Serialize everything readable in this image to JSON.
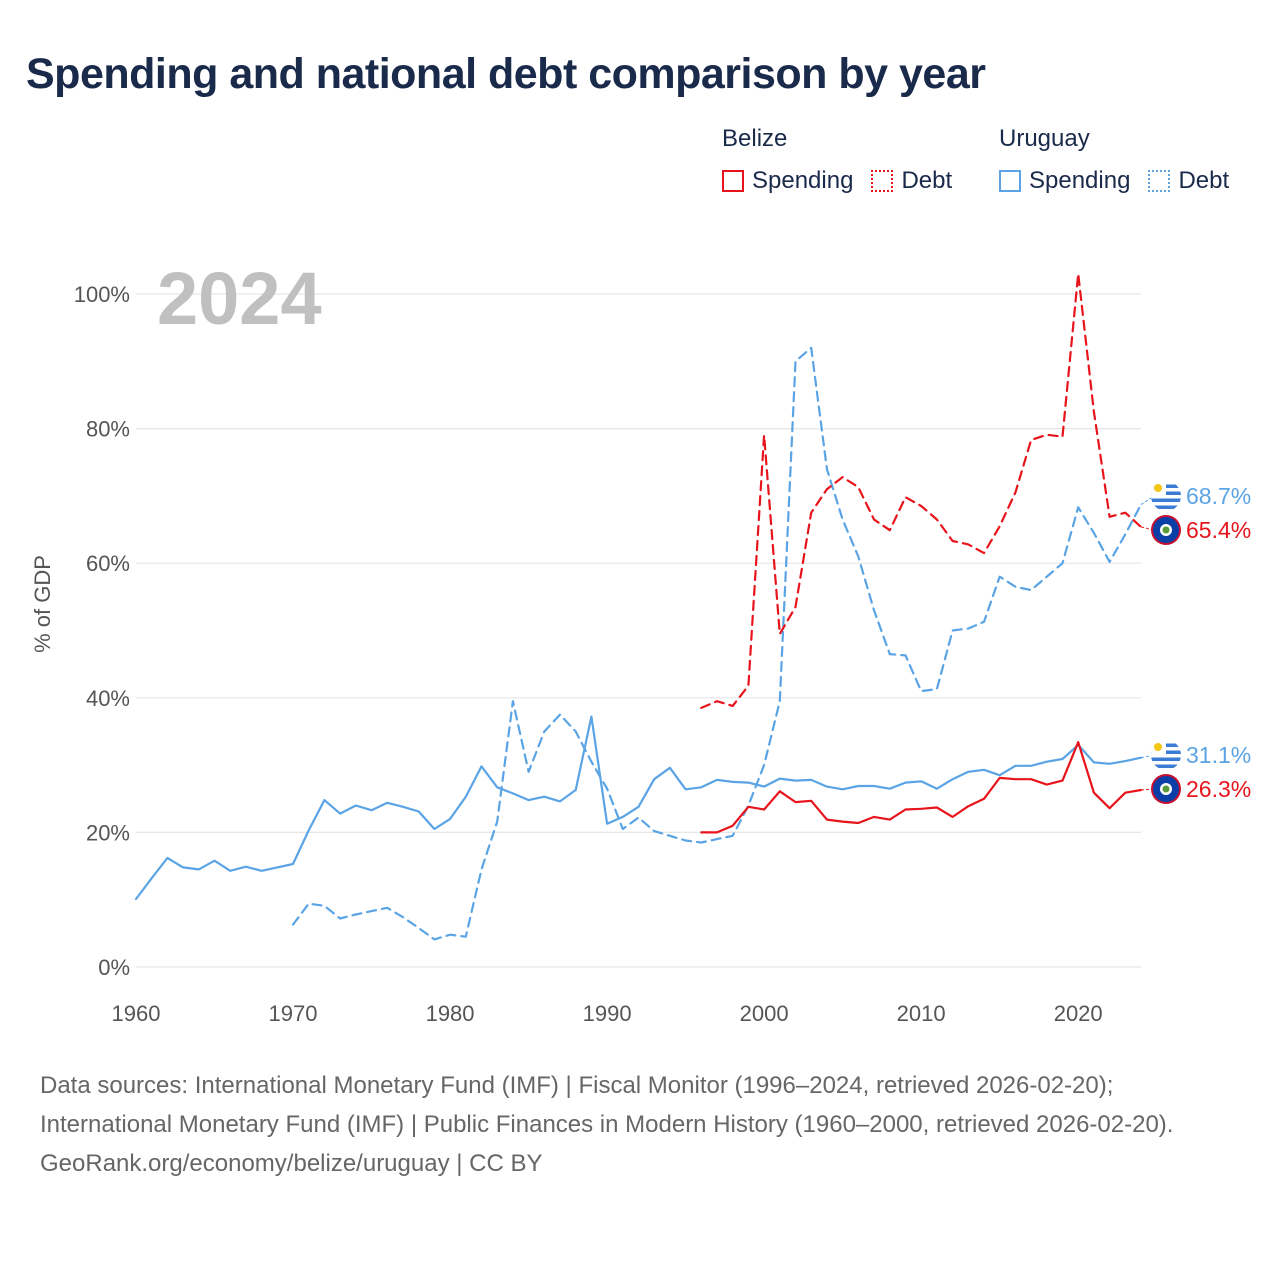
{
  "title": "Spending and national debt comparison by year",
  "legend": {
    "groups": [
      {
        "name": "Belize",
        "color": "#e8141c",
        "items": [
          {
            "label": "Spending",
            "style": "solid"
          },
          {
            "label": "Debt",
            "style": "dotted"
          }
        ]
      },
      {
        "name": "Uruguay",
        "color": "#5aa4e6",
        "items": [
          {
            "label": "Spending",
            "style": "solid"
          },
          {
            "label": "Debt",
            "style": "dotted"
          }
        ]
      }
    ]
  },
  "chart_data": {
    "type": "line",
    "year_label": "2024",
    "ylabel": "% of GDP",
    "xlabel": "",
    "xlim": [
      1960,
      2024
    ],
    "ylim": [
      0,
      100
    ],
    "x_ticks": [
      1960,
      1970,
      1980,
      1990,
      2000,
      2010,
      2020
    ],
    "y_ticks": [
      0,
      20,
      40,
      60,
      80,
      100
    ],
    "y_tick_labels": [
      "0%",
      "20%",
      "40%",
      "60%",
      "80%",
      "100%"
    ],
    "gridlines": true,
    "series": [
      {
        "name": "Uruguay Debt",
        "country": "Uruguay",
        "measure": "Debt",
        "color": "#5aa4e6",
        "dash": true,
        "x": [
          1970,
          1971,
          1972,
          1973,
          1974,
          1975,
          1976,
          1977,
          1978,
          1979,
          1980,
          1981,
          1982,
          1983,
          1984,
          1985,
          1986,
          1987,
          1988,
          1989,
          1990,
          1991,
          1992,
          1993,
          1994,
          1995,
          1996,
          1997,
          1998,
          1999,
          2000,
          2001,
          2002,
          2003,
          2004,
          2005,
          2006,
          2007,
          2008,
          2009,
          2010,
          2011,
          2012,
          2013,
          2014,
          2015,
          2016,
          2017,
          2018,
          2019,
          2020,
          2021,
          2022,
          2023,
          2024
        ],
        "y": [
          6.3,
          9.4,
          9.1,
          7.2,
          7.8,
          8.3,
          8.8,
          7.4,
          5.8,
          4.1,
          4.8,
          4.5,
          14.5,
          21.6,
          39.5,
          29.0,
          35.0,
          37.5,
          35.0,
          30.5,
          26.5,
          20.5,
          22.2,
          20.2,
          19.5,
          18.8,
          18.5,
          19.0,
          19.5,
          24.0,
          30.0,
          39.5,
          90.0,
          92.0,
          74.0,
          66.5,
          61.0,
          53.0,
          46.5,
          46.3,
          41.0,
          41.3,
          50.0,
          50.3,
          51.3,
          58.0,
          56.5,
          56.0,
          58.0,
          60.0,
          68.3,
          64.5,
          60.2,
          64.3,
          68.7
        ]
      },
      {
        "name": "Uruguay Spending",
        "country": "Uruguay",
        "measure": "Spending",
        "color": "#5aa4e6",
        "dash": false,
        "x": [
          1960,
          1961,
          1962,
          1963,
          1964,
          1965,
          1966,
          1967,
          1968,
          1969,
          1970,
          1971,
          1972,
          1973,
          1974,
          1975,
          1976,
          1977,
          1978,
          1979,
          1980,
          1981,
          1982,
          1983,
          1984,
          1985,
          1986,
          1987,
          1988,
          1989,
          1990,
          1991,
          1992,
          1993,
          1994,
          1995,
          1996,
          1997,
          1998,
          1999,
          2000,
          2001,
          2002,
          2003,
          2004,
          2005,
          2006,
          2007,
          2008,
          2009,
          2010,
          2011,
          2012,
          2013,
          2014,
          2015,
          2016,
          2017,
          2018,
          2019,
          2020,
          2021,
          2022,
          2023,
          2024
        ],
        "y": [
          10.1,
          13.2,
          16.2,
          14.8,
          14.5,
          15.8,
          14.3,
          14.9,
          14.3,
          14.8,
          15.3,
          20.3,
          24.8,
          22.8,
          24.0,
          23.3,
          24.4,
          23.8,
          23.1,
          20.5,
          22.0,
          25.3,
          29.8,
          26.7,
          25.8,
          24.8,
          25.3,
          24.6,
          26.3,
          37.2,
          21.3,
          22.3,
          23.8,
          27.9,
          29.6,
          26.4,
          26.7,
          27.8,
          27.5,
          27.4,
          26.8,
          28.0,
          27.7,
          27.8,
          26.8,
          26.4,
          26.9,
          26.9,
          26.5,
          27.4,
          27.6,
          26.5,
          27.9,
          29.0,
          29.3,
          28.5,
          29.9,
          29.9,
          30.5,
          30.9,
          33.0,
          30.4,
          30.2,
          30.6,
          31.1
        ]
      },
      {
        "name": "Belize Debt",
        "country": "Belize",
        "measure": "Debt",
        "color": "#e8141c",
        "dash": true,
        "x": [
          1996,
          1997,
          1998,
          1999,
          2000,
          2001,
          2002,
          2003,
          2004,
          2005,
          2006,
          2007,
          2008,
          2009,
          2010,
          2011,
          2012,
          2013,
          2014,
          2015,
          2016,
          2017,
          2018,
          2019,
          2020,
          2021,
          2022,
          2023,
          2024
        ],
        "y": [
          38.5,
          39.5,
          38.8,
          41.8,
          79.0,
          49.5,
          53.5,
          67.5,
          71.0,
          72.8,
          71.3,
          66.5,
          64.9,
          69.8,
          68.5,
          66.5,
          63.3,
          62.8,
          61.5,
          65.5,
          70.5,
          78.3,
          79.1,
          78.8,
          103.0,
          82.5,
          66.9,
          67.5,
          65.4
        ]
      },
      {
        "name": "Belize Spending",
        "country": "Belize",
        "measure": "Spending",
        "color": "#e8141c",
        "dash": false,
        "x": [
          1996,
          1997,
          1998,
          1999,
          2000,
          2001,
          2002,
          2003,
          2004,
          2005,
          2006,
          2007,
          2008,
          2009,
          2010,
          2011,
          2012,
          2013,
          2014,
          2015,
          2016,
          2017,
          2018,
          2019,
          2020,
          2021,
          2022,
          2023,
          2024
        ],
        "y": [
          20.0,
          20.0,
          21.0,
          23.8,
          23.4,
          26.1,
          24.5,
          24.7,
          21.9,
          21.6,
          21.4,
          22.3,
          21.9,
          23.4,
          23.5,
          23.7,
          22.3,
          23.9,
          25.0,
          28.1,
          27.9,
          27.9,
          27.1,
          27.7,
          33.4,
          25.9,
          23.6,
          25.9,
          26.3
        ]
      }
    ],
    "end_labels": [
      {
        "country": "Uruguay",
        "measure": "Debt",
        "text": "68.7%",
        "value": 68.7,
        "color": "#5aa4e6"
      },
      {
        "country": "Belize",
        "measure": "Debt",
        "text": "65.4%",
        "value": 65.4,
        "color": "#e8141c"
      },
      {
        "country": "Uruguay",
        "measure": "Spending",
        "text": "31.1%",
        "value": 31.1,
        "color": "#5aa4e6"
      },
      {
        "country": "Belize",
        "measure": "Spending",
        "text": "26.3%",
        "value": 26.3,
        "color": "#e8141c"
      }
    ]
  },
  "footer": {
    "sources": "Data sources: International Monetary Fund (IMF) | Fiscal Monitor (1996–2024, retrieved 2026-02-20); International Monetary Fund (IMF) | Public Finances in Modern History (1960–2000, retrieved 2026-02-20).",
    "credit": "GeoRank.org/economy/belize/uruguay | CC BY"
  }
}
